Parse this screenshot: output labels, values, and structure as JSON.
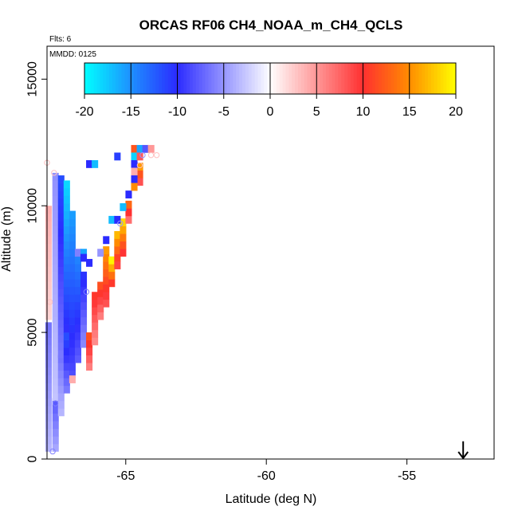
{
  "chart_data": {
    "type": "heatmap",
    "title": "ORCAS RF06 CH4_NOAA_m_CH4_QCLS",
    "flights_label": "Flts: 6",
    "date_label": "MMDD: 0125",
    "xlabel": "Latitude (deg N)",
    "ylabel": "Altitude (m)",
    "xlim": [
      -67.8,
      -51.9
    ],
    "ylim": [
      0,
      16300
    ],
    "x_ticks": [
      -65,
      -60,
      -55
    ],
    "y_ticks": [
      0,
      5000,
      10000,
      15000
    ],
    "grid": false,
    "legend": "colorbar-top-inside",
    "colorbar": {
      "ticks": [
        -20,
        -15,
        -10,
        -5,
        0,
        5,
        10,
        15,
        20
      ],
      "range": [
        -20,
        20
      ],
      "stops": [
        {
          "v": -20,
          "color": "#00ffff"
        },
        {
          "v": -15,
          "color": "#1e90ff"
        },
        {
          "v": -10,
          "color": "#2b2bff"
        },
        {
          "v": 0,
          "color": "#ffffff"
        },
        {
          "v": 10,
          "color": "#ff3030"
        },
        {
          "v": 15,
          "color": "#ff8c00"
        },
        {
          "v": 20,
          "color": "#ffff00"
        }
      ]
    },
    "cell_size": {
      "dlat": 0.22,
      "dalt": 300
    },
    "columns": [
      {
        "lat": -67.75,
        "alts": [
          300,
          5500
        ],
        "value": -5
      },
      {
        "lat": -67.75,
        "alts": [
          5500,
          10000
        ],
        "value": 3
      },
      {
        "lat": -67.5,
        "alts": [
          300,
          2300
        ],
        "value": -6
      },
      {
        "lat": -67.5,
        "alts": [
          2300,
          11300
        ],
        "value": -4
      },
      {
        "lat": -67.3,
        "alts": [
          1700,
          4000
        ],
        "value": -5
      },
      {
        "lat": -67.3,
        "alts": [
          4000,
          11300
        ],
        "value": -9
      },
      {
        "lat": -67.1,
        "alts": [
          2600,
          5000
        ],
        "value": -9
      },
      {
        "lat": -67.1,
        "alts": [
          5000,
          11000
        ],
        "value": -14
      },
      {
        "lat": -66.9,
        "alts": [
          3200,
          9800
        ],
        "value": -12
      },
      {
        "lat": -66.7,
        "alts": [
          3800,
          8000
        ],
        "value": -11
      },
      {
        "lat": -66.5,
        "alts": [
          4400,
          7400
        ],
        "value": -8
      },
      {
        "lat": -66.3,
        "alts": [
          3500,
          5000
        ],
        "value": 9
      },
      {
        "lat": -66.1,
        "alts": [
          4500,
          6500
        ],
        "value": 8
      },
      {
        "lat": -65.9,
        "alts": [
          5500,
          7000
        ],
        "value": 9
      },
      {
        "lat": -65.7,
        "alts": [
          6000,
          8400
        ],
        "value": 12
      },
      {
        "lat": -65.5,
        "alts": [
          6800,
          8000
        ],
        "value": 15
      },
      {
        "lat": -65.3,
        "alts": [
          7500,
          9000
        ],
        "value": 13
      },
      {
        "lat": -65.1,
        "alts": [
          8000,
          9500
        ],
        "value": 14
      },
      {
        "lat": -64.9,
        "alts": [
          9300,
          10300
        ],
        "value": 10
      },
      {
        "lat": -64.5,
        "alts": [
          10800,
          11600
        ],
        "value": 12
      }
    ],
    "cells": [
      {
        "lat": -66.9,
        "alt": 3000,
        "value": 4
      },
      {
        "lat": -66.7,
        "alt": 8000,
        "value": -6
      },
      {
        "lat": -66.5,
        "alt": 8000,
        "value": -16
      },
      {
        "lat": -66.5,
        "alt": 7800,
        "value": -10
      },
      {
        "lat": -66.3,
        "alt": 7600,
        "value": -10
      },
      {
        "lat": -66.3,
        "alt": 11500,
        "value": -10
      },
      {
        "lat": -66.1,
        "alt": 11500,
        "value": -17
      },
      {
        "lat": -65.9,
        "alt": 8000,
        "value": -5
      },
      {
        "lat": -65.7,
        "alt": 8500,
        "value": -10
      },
      {
        "lat": -65.5,
        "alt": 9300,
        "value": -17
      },
      {
        "lat": -65.3,
        "alt": 9300,
        "value": -10
      },
      {
        "lat": -65.3,
        "alt": 11800,
        "value": -11
      },
      {
        "lat": -65.1,
        "alt": 9800,
        "value": -17
      },
      {
        "lat": -64.9,
        "alt": 10300,
        "value": -10
      },
      {
        "lat": -64.7,
        "alt": 12100,
        "value": 12
      },
      {
        "lat": -64.7,
        "alt": 11800,
        "value": -18
      },
      {
        "lat": -64.7,
        "alt": 11500,
        "value": -10
      },
      {
        "lat": -64.7,
        "alt": 11200,
        "value": 4
      },
      {
        "lat": -64.7,
        "alt": 10900,
        "value": -10
      },
      {
        "lat": -64.7,
        "alt": 10600,
        "value": 15
      },
      {
        "lat": -64.5,
        "alt": 12100,
        "value": -16
      },
      {
        "lat": -64.5,
        "alt": 11800,
        "value": 8
      },
      {
        "lat": -64.3,
        "alt": 12100,
        "value": -8
      },
      {
        "lat": -64.1,
        "alt": 12100,
        "value": 5
      }
    ],
    "circles": [
      {
        "lat": -67.8,
        "alt": 11700,
        "value": 3
      },
      {
        "lat": -67.55,
        "alt": 11300,
        "value": 3
      },
      {
        "lat": -67.7,
        "alt": 6200,
        "value": 3
      },
      {
        "lat": -67.5,
        "alt": 2200,
        "value": -6
      },
      {
        "lat": -67.6,
        "alt": 300,
        "value": -6
      },
      {
        "lat": -65.2,
        "alt": 9300,
        "value": -5
      },
      {
        "lat": -66.4,
        "alt": 6600,
        "value": -6
      },
      {
        "lat": -64.5,
        "alt": 11600,
        "value": 3
      },
      {
        "lat": -64.1,
        "alt": 12000,
        "value": 3
      },
      {
        "lat": -63.9,
        "alt": 12000,
        "value": 3
      },
      {
        "lat": -64.4,
        "alt": 12000,
        "value": -5
      }
    ],
    "arrow": {
      "lat": -53.0,
      "alt_top": 700,
      "alt_bottom": 0
    }
  }
}
